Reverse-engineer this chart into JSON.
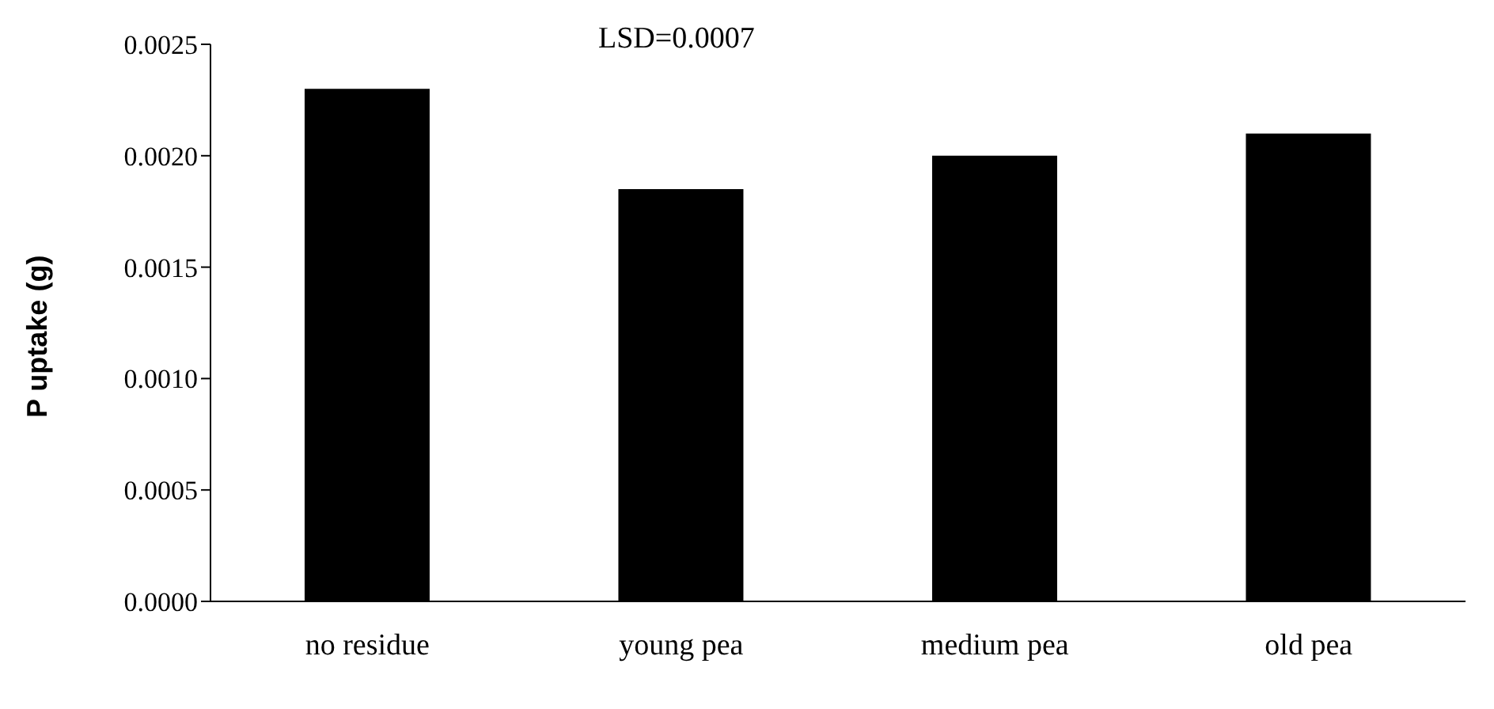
{
  "chart_data": {
    "type": "bar",
    "ylabel": "P uptake (g)",
    "annotations": [
      "LSD=0.0007"
    ],
    "categories": [
      "no  residue",
      "young pea",
      "medium pea",
      "old pea"
    ],
    "values": [
      0.0023,
      0.00185,
      0.002,
      0.0021
    ],
    "color": "#000000",
    "ylim": [
      0,
      0.0025
    ],
    "yticks": [
      {
        "value": 0,
        "label": "0.0000"
      },
      {
        "value": 0.0005,
        "label": "0.0005"
      },
      {
        "value": 0.001,
        "label": "0.0010"
      },
      {
        "value": 0.0015,
        "label": "0.0015"
      },
      {
        "value": 0.002,
        "label": "0.0020"
      },
      {
        "value": 0.0025,
        "label": "0.0025"
      }
    ],
    "grid": false,
    "legend": false
  }
}
